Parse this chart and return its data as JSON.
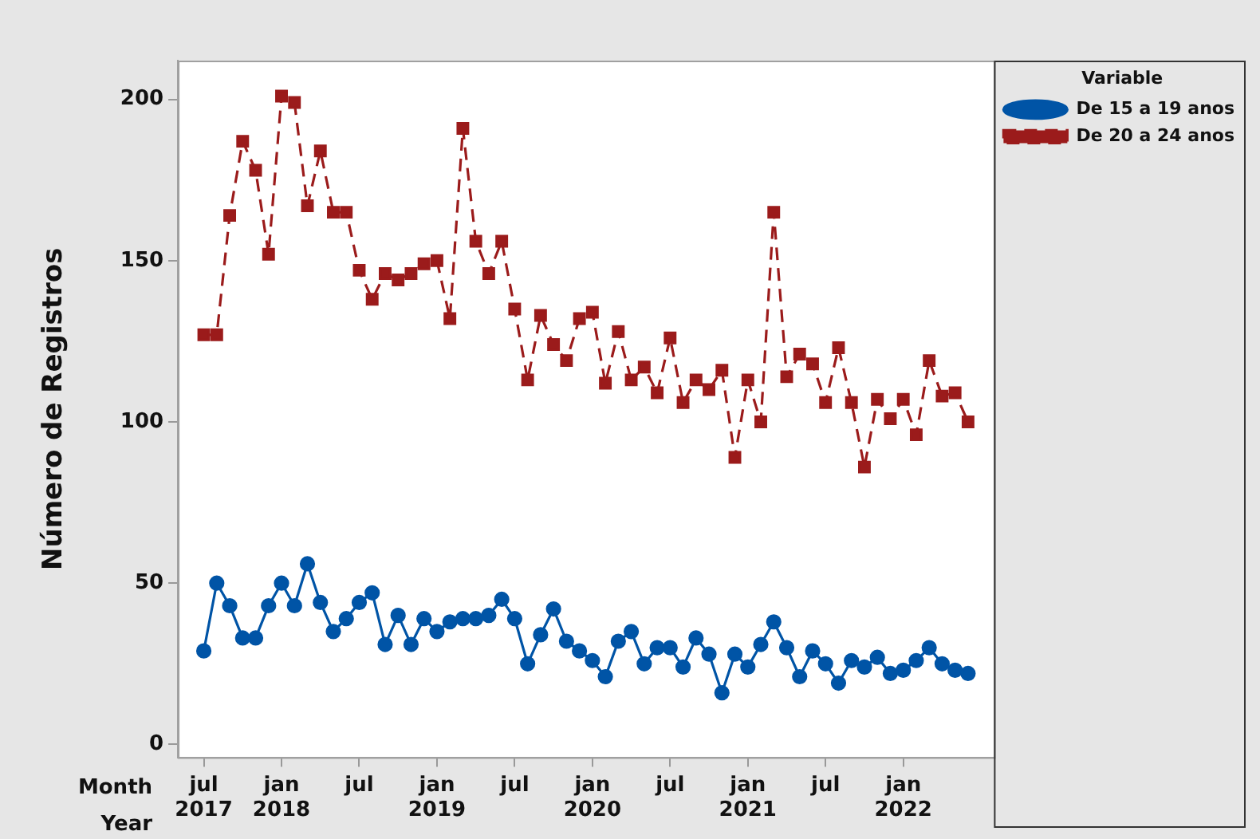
{
  "chart_data": {
    "type": "line",
    "ylabel": "Número de Registros",
    "xlabel": "Month\nYear",
    "legend_title": "Variable",
    "legend": "top right",
    "grid": false,
    "x": [
      "2017-07",
      "2017-08",
      "2017-09",
      "2017-10",
      "2017-11",
      "2017-12",
      "2018-01",
      "2018-02",
      "2018-03",
      "2018-04",
      "2018-05",
      "2018-06",
      "2018-07",
      "2018-08",
      "2018-09",
      "2018-10",
      "2018-11",
      "2018-12",
      "2019-01",
      "2019-02",
      "2019-03",
      "2019-04",
      "2019-05",
      "2019-06",
      "2019-07",
      "2019-08",
      "2019-09",
      "2019-10",
      "2019-11",
      "2019-12",
      "2020-01",
      "2020-02",
      "2020-03",
      "2020-04",
      "2020-05",
      "2020-06",
      "2020-07",
      "2020-08",
      "2020-09",
      "2020-10",
      "2020-11",
      "2020-12",
      "2021-01",
      "2021-02",
      "2021-03",
      "2021-04",
      "2021-05",
      "2021-06",
      "2021-07",
      "2021-08",
      "2021-09",
      "2021-10",
      "2021-11",
      "2021-12",
      "2022-01",
      "2022-02",
      "2022-03",
      "2022-04",
      "2022-05",
      "2022-06"
    ],
    "xlim": [
      "2017-05",
      "2022-08"
    ],
    "xticks": [
      {
        "value": "2017-07",
        "label": "jul\n2017"
      },
      {
        "value": "2018-01",
        "label": "jan\n2018"
      },
      {
        "value": "2018-07",
        "label": "jul"
      },
      {
        "value": "2019-01",
        "label": "jan\n2019"
      },
      {
        "value": "2019-07",
        "label": "jul"
      },
      {
        "value": "2020-01",
        "label": "jan\n2020"
      },
      {
        "value": "2020-07",
        "label": "jul"
      },
      {
        "value": "2021-01",
        "label": "jan\n2021"
      },
      {
        "value": "2021-07",
        "label": "jul"
      },
      {
        "value": "2022-01",
        "label": "jan\n2022"
      }
    ],
    "ylim": [
      -4,
      212
    ],
    "yticks": [
      0,
      50,
      100,
      150,
      200
    ],
    "series": [
      {
        "name": "De 15 a 19 anos",
        "color": "#0054a6",
        "marker": "circle",
        "line_style": "solid",
        "values": [
          29,
          50,
          43,
          33,
          33,
          43,
          50,
          43,
          56,
          44,
          35,
          39,
          44,
          47,
          31,
          40,
          31,
          39,
          35,
          38,
          39,
          39,
          40,
          45,
          39,
          25,
          34,
          42,
          32,
          29,
          26,
          21,
          32,
          35,
          25,
          30,
          30,
          24,
          33,
          28,
          16,
          28,
          24,
          31,
          38,
          30,
          21,
          29,
          25,
          19,
          26,
          24,
          27,
          22,
          23,
          26,
          30,
          25,
          23,
          22
        ]
      },
      {
        "name": "De 20 a 24 anos",
        "color": "#9b1b1b",
        "marker": "square",
        "line_style": "dashed",
        "values": [
          127,
          127,
          164,
          187,
          178,
          152,
          201,
          199,
          167,
          184,
          165,
          165,
          147,
          138,
          146,
          144,
          146,
          149,
          150,
          132,
          191,
          156,
          146,
          156,
          135,
          113,
          133,
          124,
          119,
          132,
          134,
          112,
          128,
          113,
          117,
          109,
          126,
          106,
          113,
          110,
          116,
          89,
          113,
          100,
          165,
          114,
          121,
          118,
          106,
          123,
          106,
          86,
          107,
          101,
          107,
          96,
          119,
          108,
          109,
          100
        ]
      }
    ]
  }
}
